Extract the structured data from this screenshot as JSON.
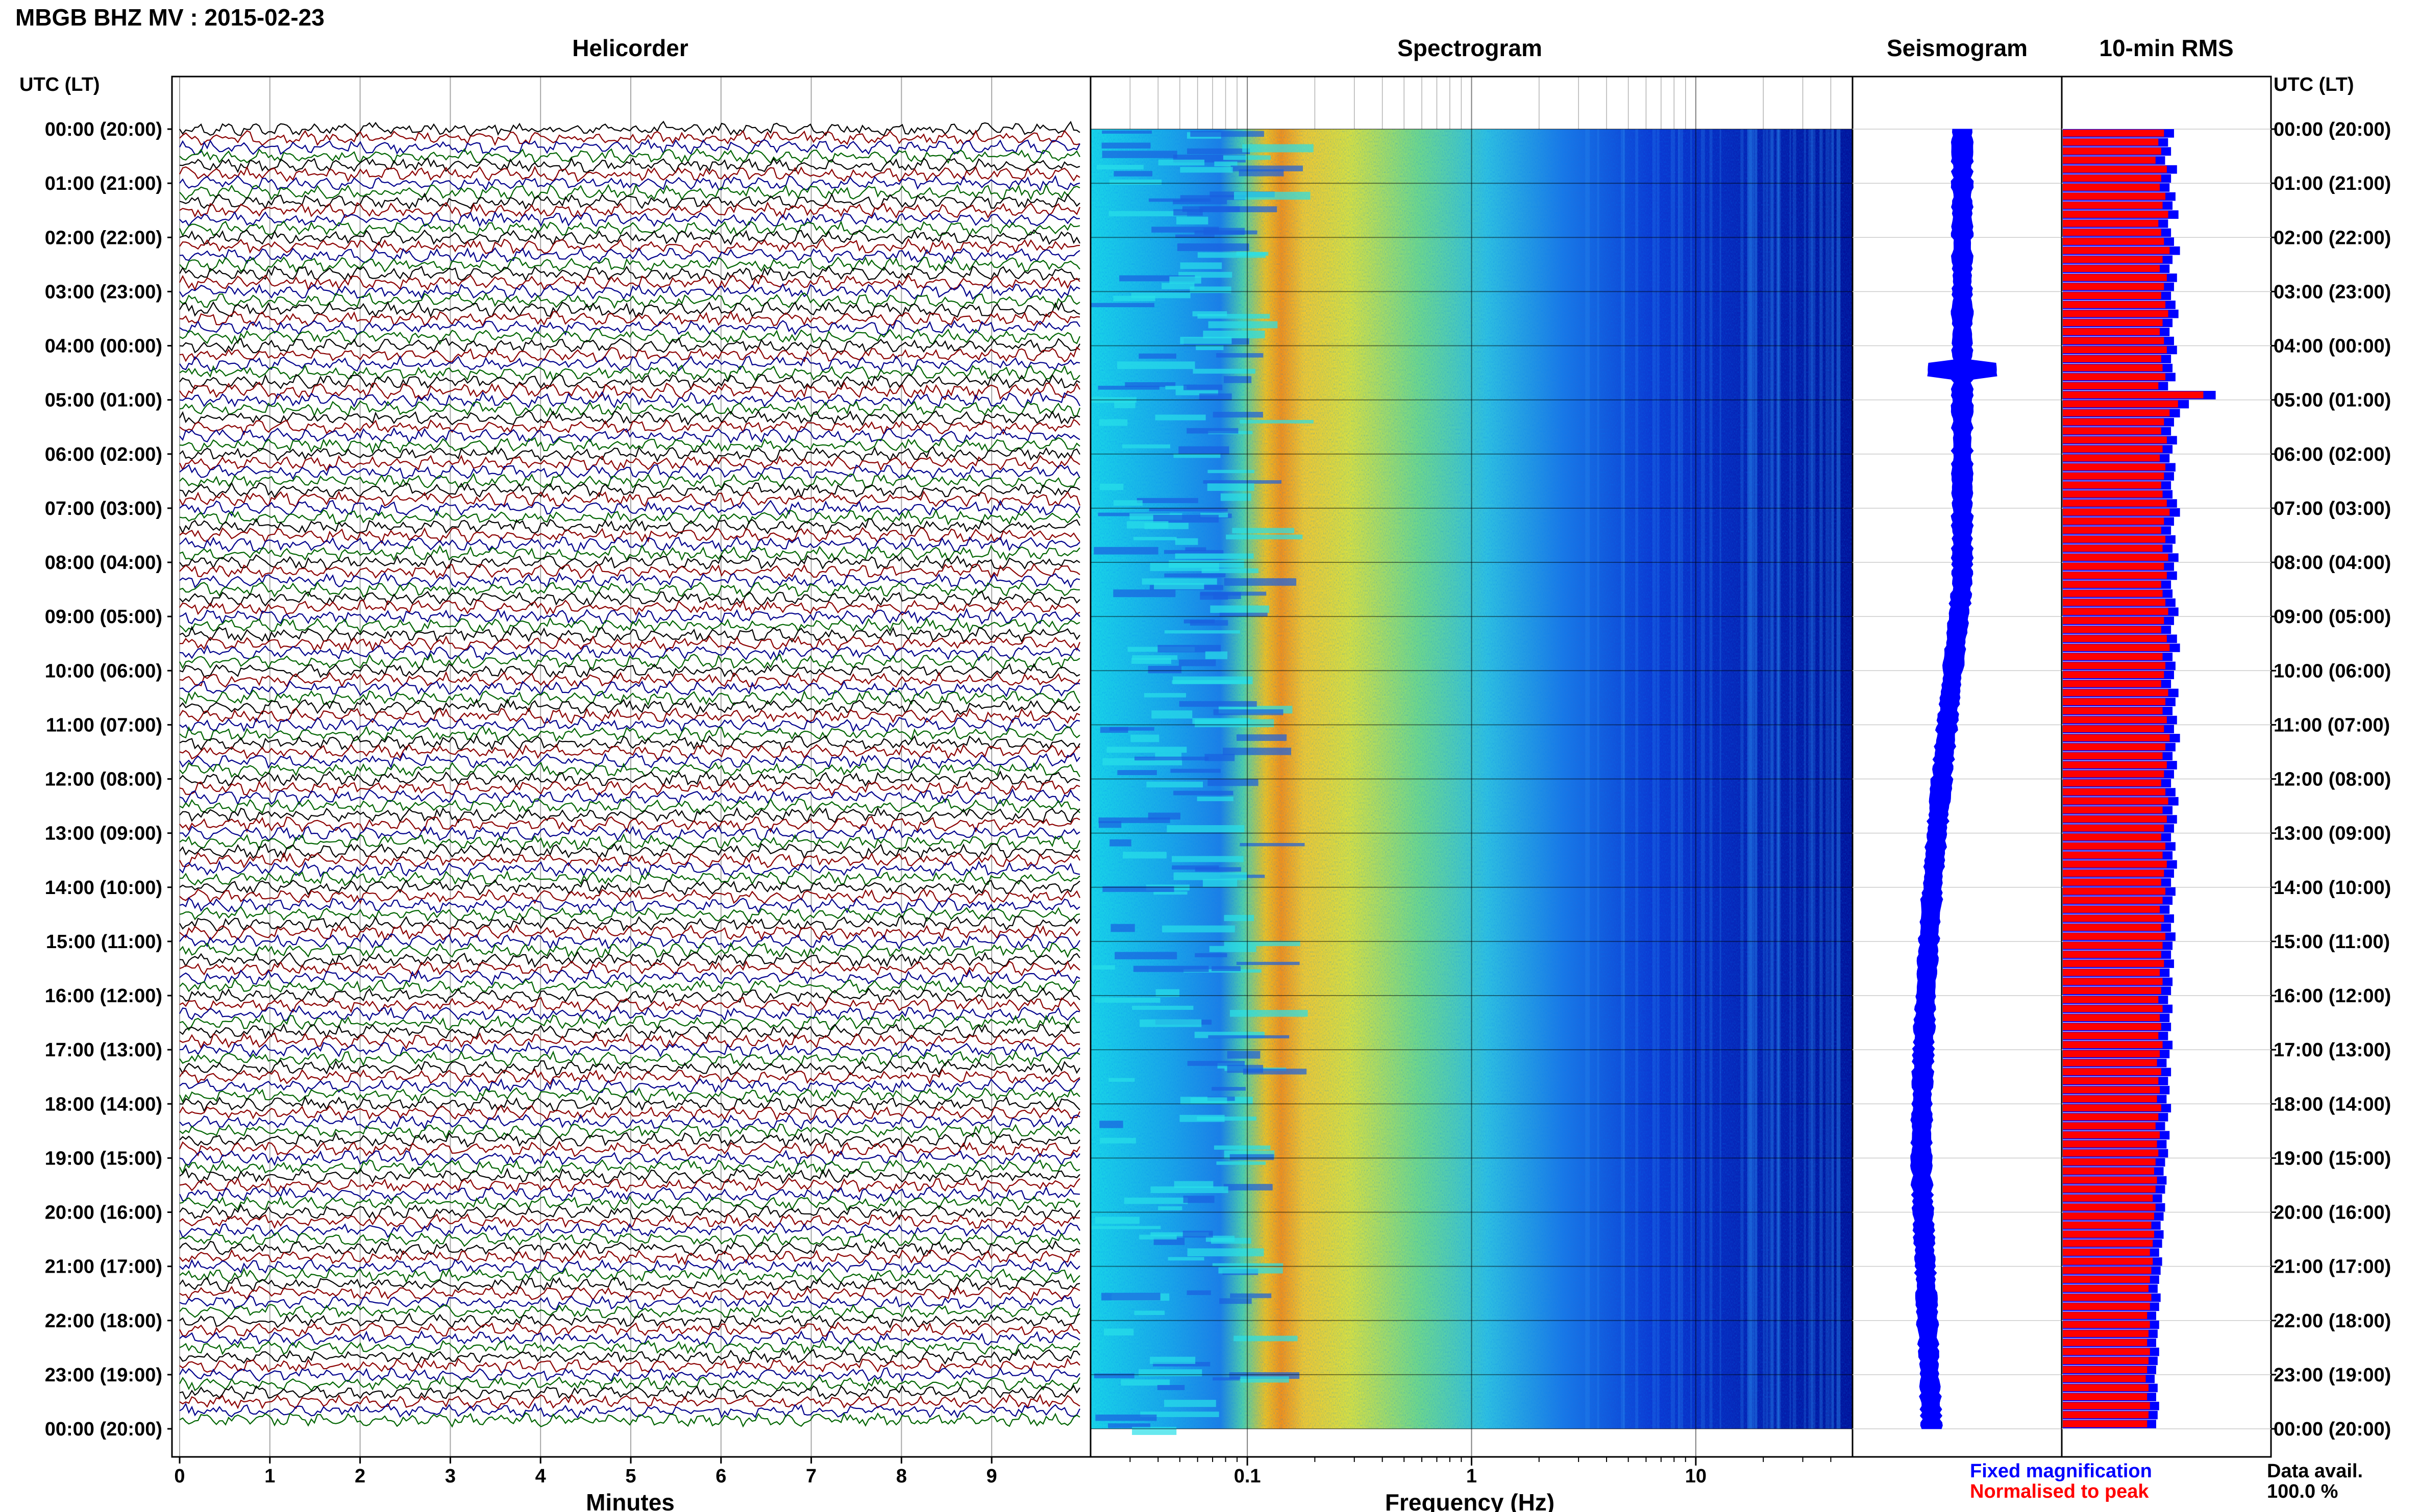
{
  "header": {
    "station_title": "MBGB BHZ MV : 2015-02-23"
  },
  "panels": {
    "helicorder": "Helicorder",
    "spectrogram": "Spectrogram",
    "seismogram": "Seismogram",
    "rms": "10-min RMS"
  },
  "axis_header_left": "UTC (LT)",
  "axis_header_right": "UTC (LT)",
  "footer": {
    "fixed_magnification": "Fixed magnification",
    "normalised_to_peak": "Normalised to peak",
    "data_avail_label": "Data avail.",
    "data_avail_value": "100.0 %"
  },
  "colors": {
    "helicorder_traces": [
      "#000000",
      "#8b0000",
      "#00008b",
      "#006400"
    ],
    "seismogram": "#0000ff",
    "rms_fixed": "#0000ff",
    "rms_normalised": "#ff0000"
  },
  "chart_data": [
    {
      "type": "line",
      "title": "Helicorder",
      "xlabel": "Minutes",
      "ylabel": "",
      "x_ticks": [
        "0",
        "1",
        "2",
        "3",
        "4",
        "5",
        "6",
        "7",
        "8",
        "9"
      ],
      "xlim": [
        0,
        10
      ],
      "y_tick_labels": [
        "00:00 (20:00)",
        "01:00 (21:00)",
        "02:00 (22:00)",
        "03:00 (23:00)",
        "04:00 (00:00)",
        "05:00 (01:00)",
        "06:00 (02:00)",
        "07:00 (03:00)",
        "08:00 (04:00)",
        "09:00 (05:00)",
        "10:00 (06:00)",
        "11:00 (07:00)",
        "12:00 (08:00)",
        "13:00 (09:00)",
        "14:00 (10:00)",
        "15:00 (11:00)",
        "16:00 (12:00)",
        "17:00 (13:00)",
        "18:00 (14:00)",
        "19:00 (15:00)",
        "20:00 (16:00)",
        "21:00 (17:00)",
        "22:00 (18:00)",
        "23:00 (19:00)",
        "00:00 (20:00)"
      ],
      "rows": 144,
      "trace_color_cycle": [
        "black",
        "darkred",
        "darkblue",
        "darkgreen"
      ]
    },
    {
      "type": "heatmap",
      "title": "Spectrogram",
      "xlabel": "Frequency (Hz)",
      "x_scale": "log",
      "x_ticks": [
        "0.1",
        "1",
        "10"
      ],
      "xlim": [
        0.02,
        50
      ],
      "dominant_band_hz": [
        0.15,
        0.3
      ],
      "colormap": "jet"
    },
    {
      "type": "line",
      "title": "Seismogram",
      "series_color": "blue"
    },
    {
      "type": "bar",
      "title": "10-min RMS",
      "orientation": "horizontal",
      "bins_per_day": 144,
      "series": [
        {
          "name": "Fixed magnification",
          "color": "blue"
        },
        {
          "name": "Normalised to peak",
          "color": "red"
        }
      ],
      "xlim": [
        0,
        1
      ],
      "values_fixed": [
        0.72,
        0.68,
        0.7,
        0.66,
        0.74,
        0.7,
        0.69,
        0.73,
        0.71,
        0.75,
        0.68,
        0.7,
        0.72,
        0.76,
        0.71,
        0.69,
        0.74,
        0.72,
        0.7,
        0.73,
        0.75,
        0.71,
        0.69,
        0.72,
        0.74,
        0.7,
        0.71,
        0.73,
        0.68,
        1.0,
        0.82,
        0.76,
        0.72,
        0.7,
        0.74,
        0.71,
        0.69,
        0.73,
        0.72,
        0.7,
        0.71,
        0.74,
        0.76,
        0.72,
        0.7,
        0.73,
        0.71,
        0.75,
        0.72,
        0.74,
        0.7,
        0.71,
        0.73,
        0.75,
        0.72,
        0.7,
        0.74,
        0.76,
        0.71,
        0.73,
        0.72,
        0.7,
        0.75,
        0.73,
        0.71,
        0.74,
        0.72,
        0.76,
        0.73,
        0.71,
        0.74,
        0.72,
        0.7,
        0.73,
        0.75,
        0.71,
        0.74,
        0.72,
        0.7,
        0.73,
        0.71,
        0.74,
        0.72,
        0.7,
        0.73,
        0.71,
        0.69,
        0.72,
        0.7,
        0.73,
        0.71,
        0.7,
        0.72,
        0.69,
        0.71,
        0.7,
        0.68,
        0.71,
        0.69,
        0.7,
        0.68,
        0.71,
        0.69,
        0.67,
        0.7,
        0.68,
        0.69,
        0.67,
        0.7,
        0.68,
        0.66,
        0.69,
        0.67,
        0.68,
        0.66,
        0.65,
        0.67,
        0.66,
        0.64,
        0.66,
        0.65,
        0.63,
        0.65,
        0.64,
        0.62,
        0.64,
        0.63,
        0.62,
        0.61,
        0.63,
        0.62,
        0.6,
        0.62,
        0.61,
        0.6,
        0.62,
        0.61,
        0.6,
        0.59,
        0.61,
        0.6,
        0.62,
        0.61,
        0.6
      ]
    }
  ]
}
